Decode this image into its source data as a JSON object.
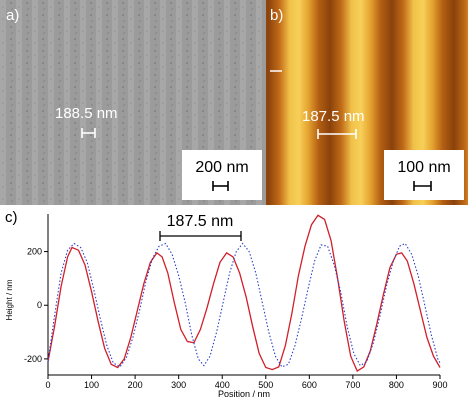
{
  "panels": {
    "a": {
      "letter": "a)",
      "feature_measure": "188.5 nm",
      "scalebar_label": "200 nm"
    },
    "b": {
      "letter": "b)",
      "feature_measure": "187.5 nm",
      "scalebar_label": "100 nm"
    }
  },
  "colors": {
    "sem_gray": "#9a9a9a",
    "afm_dark": "#7a3a08",
    "afm_mid": "#c8731a",
    "afm_light": "#f2c64a",
    "series_solid": "#d11f2a",
    "series_dotted": "#2b3fc9"
  },
  "chart_data": {
    "type": "line",
    "panel_letter": "c)",
    "annotation": "187.5 nm",
    "xlabel": "Position / nm",
    "ylabel": "Height / nm",
    "xlim": [
      0,
      900
    ],
    "ylim": [
      -260,
      340
    ],
    "xticks": [
      0,
      100,
      200,
      300,
      400,
      500,
      600,
      700,
      800,
      900
    ],
    "yticks": [
      -200,
      0,
      200
    ],
    "grid": false,
    "series": [
      {
        "style": "solid",
        "color": "#d11f2a",
        "points": [
          [
            0,
            -210
          ],
          [
            15,
            -80
          ],
          [
            30,
            70
          ],
          [
            45,
            180
          ],
          [
            55,
            215
          ],
          [
            70,
            205
          ],
          [
            85,
            150
          ],
          [
            100,
            50
          ],
          [
            115,
            -60
          ],
          [
            130,
            -160
          ],
          [
            145,
            -220
          ],
          [
            160,
            -232
          ],
          [
            175,
            -200
          ],
          [
            190,
            -120
          ],
          [
            205,
            -20
          ],
          [
            220,
            80
          ],
          [
            235,
            160
          ],
          [
            250,
            195
          ],
          [
            262,
            180
          ],
          [
            275,
            120
          ],
          [
            290,
            10
          ],
          [
            305,
            -90
          ],
          [
            320,
            -135
          ],
          [
            335,
            -140
          ],
          [
            350,
            -90
          ],
          [
            365,
            -10
          ],
          [
            380,
            80
          ],
          [
            395,
            160
          ],
          [
            410,
            195
          ],
          [
            425,
            180
          ],
          [
            440,
            120
          ],
          [
            455,
            30
          ],
          [
            470,
            -80
          ],
          [
            485,
            -180
          ],
          [
            500,
            -232
          ],
          [
            515,
            -240
          ],
          [
            530,
            -230
          ],
          [
            545,
            -150
          ],
          [
            560,
            -30
          ],
          [
            575,
            110
          ],
          [
            590,
            220
          ],
          [
            605,
            300
          ],
          [
            620,
            335
          ],
          [
            635,
            320
          ],
          [
            650,
            240
          ],
          [
            665,
            100
          ],
          [
            680,
            -60
          ],
          [
            695,
            -190
          ],
          [
            710,
            -245
          ],
          [
            725,
            -230
          ],
          [
            740,
            -170
          ],
          [
            755,
            -70
          ],
          [
            770,
            40
          ],
          [
            785,
            140
          ],
          [
            800,
            190
          ],
          [
            812,
            195
          ],
          [
            825,
            165
          ],
          [
            840,
            80
          ],
          [
            855,
            -20
          ],
          [
            870,
            -120
          ],
          [
            885,
            -190
          ],
          [
            900,
            -232
          ]
        ]
      },
      {
        "style": "dotted",
        "color": "#2b3fc9",
        "points": [
          [
            0,
            -210
          ],
          [
            15,
            -40
          ],
          [
            30,
            120
          ],
          [
            45,
            205
          ],
          [
            60,
            230
          ],
          [
            75,
            215
          ],
          [
            90,
            160
          ],
          [
            105,
            60
          ],
          [
            120,
            -50
          ],
          [
            135,
            -150
          ],
          [
            150,
            -215
          ],
          [
            165,
            -230
          ],
          [
            180,
            -195
          ],
          [
            195,
            -120
          ],
          [
            210,
            -20
          ],
          [
            225,
            90
          ],
          [
            240,
            175
          ],
          [
            255,
            220
          ],
          [
            270,
            230
          ],
          [
            285,
            190
          ],
          [
            300,
            110
          ],
          [
            315,
            10
          ],
          [
            330,
            -110
          ],
          [
            345,
            -200
          ],
          [
            358,
            -225
          ],
          [
            372,
            -190
          ],
          [
            387,
            -100
          ],
          [
            402,
            10
          ],
          [
            417,
            120
          ],
          [
            432,
            200
          ],
          [
            447,
            230
          ],
          [
            462,
            200
          ],
          [
            477,
            120
          ],
          [
            492,
            10
          ],
          [
            507,
            -100
          ],
          [
            522,
            -190
          ],
          [
            537,
            -230
          ],
          [
            552,
            -220
          ],
          [
            567,
            -150
          ],
          [
            582,
            -50
          ],
          [
            597,
            60
          ],
          [
            612,
            165
          ],
          [
            627,
            225
          ],
          [
            642,
            220
          ],
          [
            657,
            150
          ],
          [
            672,
            50
          ],
          [
            687,
            -80
          ],
          [
            702,
            -180
          ],
          [
            717,
            -225
          ],
          [
            732,
            -210
          ],
          [
            747,
            -140
          ],
          [
            762,
            -40
          ],
          [
            777,
            70
          ],
          [
            792,
            160
          ],
          [
            807,
            220
          ],
          [
            820,
            230
          ],
          [
            835,
            190
          ],
          [
            850,
            110
          ],
          [
            865,
            0
          ],
          [
            880,
            -110
          ],
          [
            895,
            -200
          ],
          [
            900,
            -215
          ]
        ]
      }
    ]
  }
}
